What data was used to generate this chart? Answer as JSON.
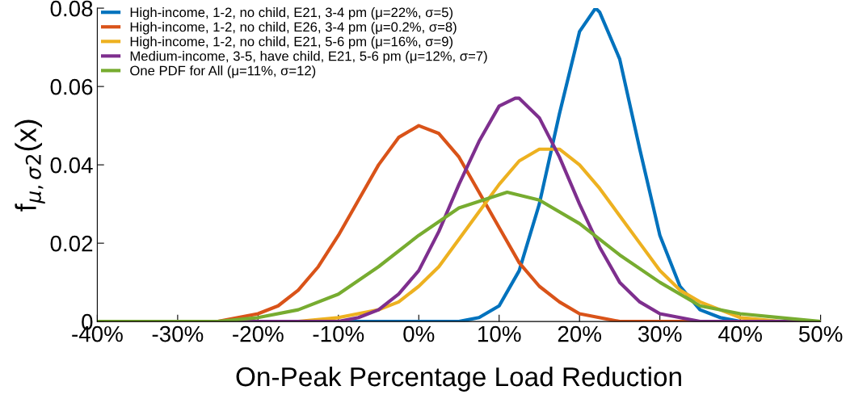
{
  "chart_data": {
    "type": "line",
    "xlabel": "On-Peak Percentage Load Reduction",
    "ylabel": "f$_{μ,σ}$$_{2}$(x)",
    "xlim": [
      -40,
      50
    ],
    "xticks": [
      {
        "value": -40,
        "label": "-40%"
      },
      {
        "value": -30,
        "label": "-30%"
      },
      {
        "value": -20,
        "label": "-20%"
      },
      {
        "value": -10,
        "label": "-10%"
      },
      {
        "value": 0,
        "label": "0%"
      },
      {
        "value": 10,
        "label": "10%"
      },
      {
        "value": 20,
        "label": "20%"
      },
      {
        "value": 30,
        "label": "30%"
      },
      {
        "value": 40,
        "label": "40%"
      },
      {
        "value": 50,
        "label": "50%"
      }
    ],
    "ylim": [
      0,
      0.08
    ],
    "yticks": [
      0,
      0.02,
      0.04,
      0.06,
      0.08
    ],
    "grid": false,
    "legend": "top left",
    "marker": "none",
    "line_style": "solid",
    "series": [
      {
        "name": "High-income, 1-2, no child, E21, 3-4 pm (μ=22%, σ=5)",
        "color": "#0072bd",
        "x": [
          -40,
          0,
          5,
          7.5,
          10,
          12.5,
          15,
          17.5,
          20,
          22,
          22.5,
          25,
          27.5,
          30,
          32.5,
          35,
          37.5,
          40,
          50
        ],
        "values": [
          0,
          0,
          0,
          0.001,
          0.004,
          0.013,
          0.03,
          0.053,
          0.074,
          0.08,
          0.079,
          0.067,
          0.044,
          0.022,
          0.009,
          0.003,
          0.001,
          0,
          0
        ]
      },
      {
        "name": "High-income, 1-2, no child, E26, 3-4 pm (μ=0.2%, σ=8)",
        "color": "#d95319",
        "x": [
          -40,
          -30,
          -25,
          -20,
          -17.5,
          -15,
          -12.5,
          -10,
          -7.5,
          -5,
          -2.5,
          0,
          2.5,
          5,
          7.5,
          10,
          12.5,
          15,
          17.5,
          20,
          25,
          30,
          50
        ],
        "values": [
          0,
          0,
          0,
          0.002,
          0.004,
          0.008,
          0.014,
          0.022,
          0.031,
          0.04,
          0.047,
          0.05,
          0.048,
          0.042,
          0.033,
          0.024,
          0.015,
          0.009,
          0.005,
          0.002,
          0,
          0,
          0
        ]
      },
      {
        "name": "High-income, 1-2, no child, E21, 5-6 pm (μ=16%, σ=9)",
        "color": "#edb120",
        "x": [
          -40,
          -20,
          -15,
          -10,
          -5,
          -2.5,
          0,
          2.5,
          5,
          7.5,
          10,
          12.5,
          15,
          16,
          17.5,
          20,
          22.5,
          25,
          27.5,
          30,
          32.5,
          35,
          37.5,
          40,
          45,
          50
        ],
        "values": [
          0,
          0,
          0,
          0.001,
          0.003,
          0.005,
          0.009,
          0.014,
          0.021,
          0.028,
          0.035,
          0.041,
          0.044,
          0.044,
          0.044,
          0.04,
          0.034,
          0.027,
          0.02,
          0.013,
          0.008,
          0.005,
          0.003,
          0.001,
          0,
          0
        ]
      },
      {
        "name": "Medium-income, 3-5, have child, E21, 5-6 pm (μ=12%, σ=7)",
        "color": "#7e2f8e",
        "x": [
          -40,
          -20,
          -10,
          -7.5,
          -5,
          -2.5,
          0,
          2.5,
          5,
          7.5,
          10,
          12,
          12.5,
          15,
          17.5,
          20,
          22.5,
          25,
          27.5,
          30,
          32.5,
          35,
          40,
          50
        ],
        "values": [
          0,
          0,
          0,
          0.001,
          0.003,
          0.007,
          0.013,
          0.023,
          0.035,
          0.046,
          0.055,
          0.057,
          0.057,
          0.052,
          0.042,
          0.03,
          0.019,
          0.01,
          0.005,
          0.002,
          0.001,
          0,
          0,
          0
        ]
      },
      {
        "name": "One PDF for All (μ=11%, σ=12)",
        "color": "#77ac30",
        "x": [
          -40,
          -35,
          -30,
          -25,
          -20,
          -15,
          -10,
          -5,
          0,
          5,
          11,
          15,
          20,
          25,
          30,
          35,
          40,
          45,
          50
        ],
        "values": [
          0,
          0,
          0,
          0,
          0.001,
          0.003,
          0.007,
          0.014,
          0.022,
          0.029,
          0.033,
          0.031,
          0.025,
          0.017,
          0.01,
          0.004,
          0.002,
          0.001,
          0
        ]
      }
    ]
  }
}
